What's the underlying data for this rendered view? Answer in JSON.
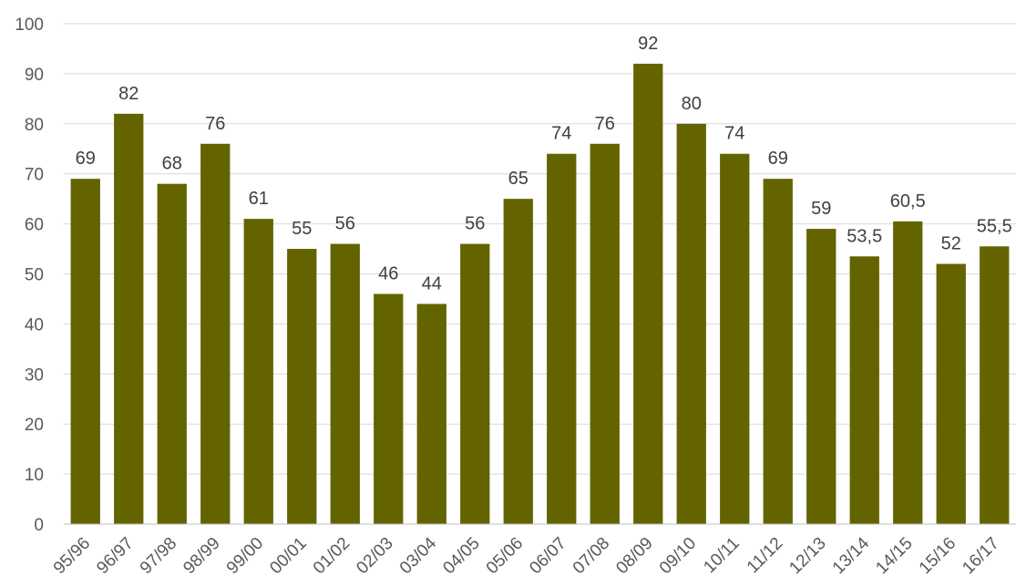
{
  "chart_data": {
    "type": "bar",
    "title": "",
    "xlabel": "",
    "ylabel": "",
    "categories": [
      "95/96",
      "96/97",
      "97/98",
      "98/99",
      "99/00",
      "00/01",
      "01/02",
      "02/03",
      "03/04",
      "04/05",
      "05/06",
      "06/07",
      "07/08",
      "08/09",
      "09/10",
      "10/11",
      "11/12",
      "12/13",
      "13/14",
      "14/15",
      "15/16",
      "16/17"
    ],
    "values": [
      69,
      82,
      68,
      76,
      61,
      55,
      56,
      46,
      44,
      56,
      65,
      74,
      76,
      92,
      80,
      74,
      69,
      59,
      53.5,
      60.5,
      52,
      55.5
    ],
    "value_labels": [
      "69",
      "82",
      "68",
      "76",
      "61",
      "55",
      "56",
      "46",
      "44",
      "56",
      "65",
      "74",
      "76",
      "92",
      "80",
      "74",
      "69",
      "59",
      "53,5",
      "60,5",
      "52",
      "55,5"
    ],
    "ylim": [
      0,
      100
    ],
    "yticks": [
      0,
      10,
      20,
      30,
      40,
      50,
      60,
      70,
      80,
      90,
      100
    ],
    "grid": true,
    "legend": "none",
    "bar_color": "#636400"
  }
}
